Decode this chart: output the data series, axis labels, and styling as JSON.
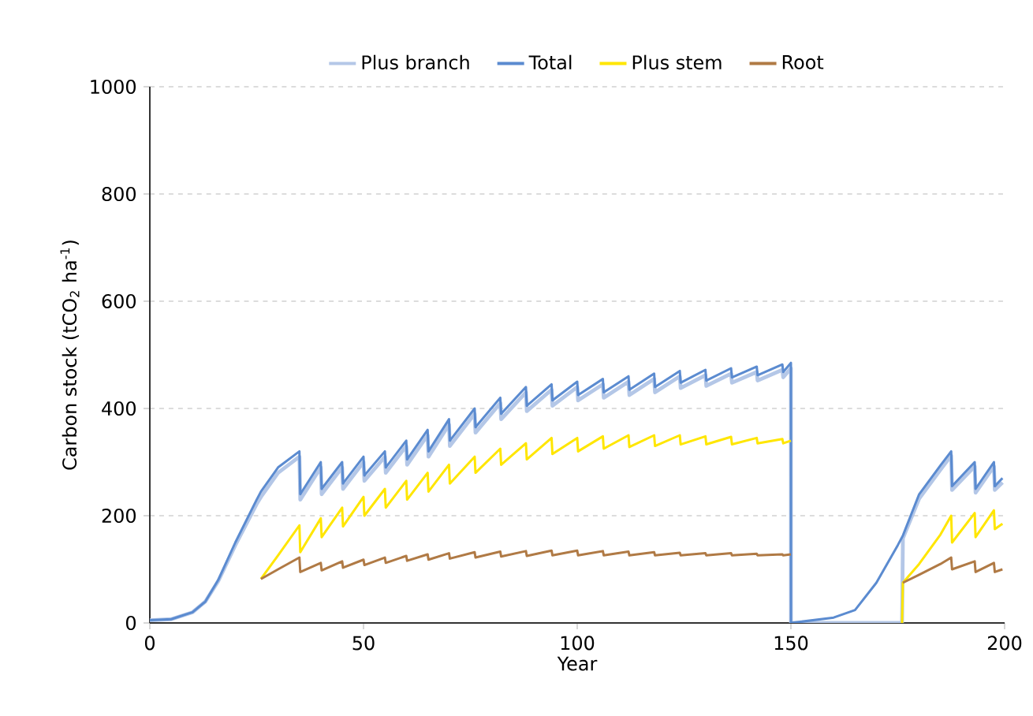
{
  "chart_data": {
    "type": "line",
    "xlabel": "Year",
    "ylabel": "Carbon stock (tCO$_{2}$ ha$^{-1}$)",
    "xlim": [
      0,
      200
    ],
    "ylim": [
      0,
      1000
    ],
    "xticks": [
      0,
      50,
      100,
      150,
      200
    ],
    "yticks": [
      0,
      200,
      400,
      600,
      800,
      1000
    ],
    "grid": "y",
    "legend": "top",
    "x": [
      0,
      5,
      10,
      13,
      16,
      20,
      25,
      26,
      30,
      35,
      35.2,
      40,
      40.2,
      45,
      45.2,
      50,
      50.2,
      55,
      55.2,
      60,
      60.2,
      65,
      65.2,
      70,
      70.2,
      76,
      76.2,
      82,
      82.2,
      88,
      88.2,
      94,
      94.2,
      100,
      100.2,
      106,
      106.2,
      112,
      112.2,
      118,
      118.2,
      124,
      124.2,
      130,
      130.2,
      136,
      136.2,
      142,
      142.2,
      148,
      148.2,
      150,
      150.01,
      160,
      165,
      170,
      175,
      176,
      176.2,
      180,
      185,
      187.5,
      187.7,
      193,
      193.2,
      197.5,
      197.7,
      199.5
    ],
    "series": [
      {
        "name": "Plus branch",
        "color": "#b4c7e7",
        "values": [
          5,
          7,
          20,
          40,
          78,
          145,
          222,
          235,
          280,
          310,
          230,
          290,
          240,
          290,
          250,
          300,
          265,
          310,
          280,
          330,
          295,
          350,
          310,
          370,
          330,
          390,
          355,
          410,
          380,
          430,
          395,
          435,
          405,
          440,
          415,
          445,
          420,
          450,
          425,
          455,
          430,
          460,
          438,
          462,
          442,
          465,
          448,
          468,
          452,
          472,
          458,
          475,
          0,
          0,
          0,
          0,
          0,
          0,
          158,
          232,
          286,
          312,
          248,
          292,
          243,
          292,
          248,
          262
        ]
      },
      {
        "name": "Total",
        "color": "#5b8bd0",
        "values": [
          5,
          7,
          20,
          40,
          80,
          150,
          230,
          245,
          290,
          320,
          240,
          300,
          250,
          300,
          260,
          310,
          275,
          320,
          290,
          340,
          305,
          360,
          320,
          380,
          340,
          400,
          365,
          420,
          390,
          440,
          405,
          445,
          415,
          450,
          425,
          455,
          430,
          460,
          435,
          465,
          440,
          470,
          448,
          472,
          452,
          475,
          458,
          478,
          462,
          482,
          468,
          485,
          0,
          10,
          24,
          75,
          145,
          160,
          163,
          240,
          294,
          320,
          255,
          300,
          250,
          300,
          255,
          270
        ]
      },
      {
        "name": "Plus stem",
        "color": "#ffe600",
        "values": [
          null,
          null,
          null,
          null,
          null,
          null,
          null,
          82,
          126,
          182,
          132,
          195,
          160,
          215,
          180,
          235,
          200,
          250,
          215,
          265,
          230,
          280,
          245,
          295,
          260,
          310,
          280,
          325,
          295,
          335,
          305,
          345,
          315,
          345,
          320,
          348,
          325,
          350,
          328,
          350,
          330,
          350,
          333,
          348,
          333,
          347,
          333,
          345,
          335,
          343,
          335,
          340,
          null,
          null,
          null,
          null,
          null,
          0,
          75,
          110,
          165,
          200,
          150,
          205,
          160,
          210,
          175,
          185
        ]
      },
      {
        "name": "Root",
        "color": "#b07a45",
        "values": [
          null,
          null,
          null,
          null,
          null,
          null,
          null,
          82,
          100,
          122,
          95,
          112,
          98,
          115,
          103,
          118,
          108,
          122,
          112,
          125,
          116,
          128,
          118,
          130,
          120,
          132,
          122,
          133,
          124,
          134,
          125,
          135,
          126,
          135,
          126,
          134,
          126,
          133,
          126,
          132,
          126,
          131,
          126,
          130,
          126,
          130,
          126,
          129,
          126,
          128,
          126,
          128,
          null,
          null,
          null,
          null,
          null,
          null,
          75,
          90,
          110,
          122,
          100,
          115,
          95,
          112,
          95,
          100
        ]
      }
    ]
  }
}
